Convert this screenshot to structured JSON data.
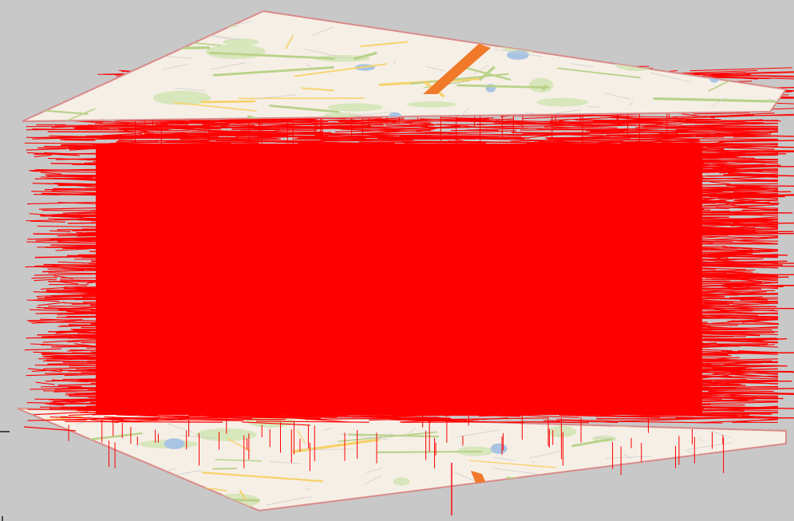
{
  "scene": {
    "background_color": "#c8c8c8",
    "plane_color": "#f6efe6",
    "plane_edge_color": "#d98a8a",
    "link_color": "#ff0000",
    "layers": [
      {
        "name": "top-map-plane",
        "content": "map"
      },
      {
        "name": "bottom-map-plane",
        "content": "map"
      }
    ],
    "map_features": {
      "major_road_color": "#f7d26b",
      "minor_road_color": "#b9d28a",
      "highway_color": "#f07a2a",
      "water_color": "#a9c4e3",
      "park_color": "#cfe3b0"
    }
  }
}
